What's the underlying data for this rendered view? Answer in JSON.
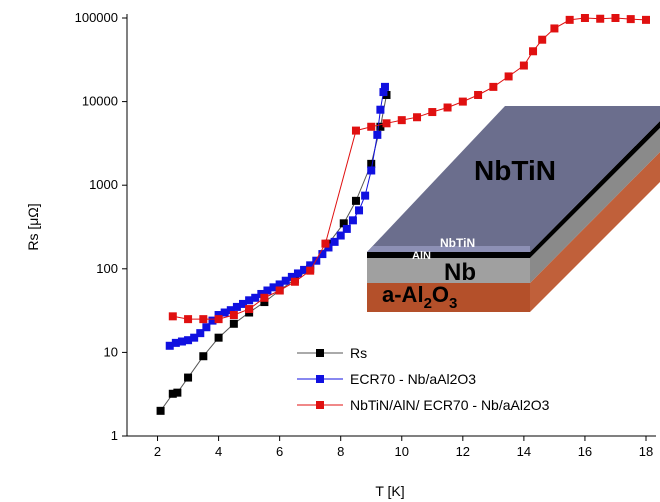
{
  "chart_data": {
    "type": "line-scatter",
    "xlabel": "T [K]",
    "ylabel": "Rs [μΩ]",
    "xlim": [
      1,
      18
    ],
    "xticks": [
      2,
      4,
      6,
      8,
      10,
      12,
      14,
      16,
      18
    ],
    "ylim": [
      1,
      100000
    ],
    "yticks": [
      1,
      10,
      100,
      1000,
      10000,
      100000
    ],
    "yscale": "log",
    "legend": "lower center",
    "series": [
      {
        "name": "Rs",
        "color": "#000000",
        "x": [
          2.1,
          2.5,
          2.65,
          3.0,
          3.5,
          4.0,
          4.5,
          5.0,
          5.5,
          6.0,
          6.5,
          7.0,
          7.6,
          8.1,
          8.5,
          9.0,
          9.3,
          9.5
        ],
        "values": [
          2,
          3.2,
          3.3,
          5,
          9,
          15,
          22,
          30,
          40,
          55,
          75,
          100,
          200,
          350,
          650,
          1800,
          5000,
          12000
        ]
      },
      {
        "name": "ECR70 - Nb/aAl2O3",
        "color": "#1010e0",
        "x": [
          2.4,
          2.6,
          2.8,
          3.0,
          3.2,
          3.4,
          3.6,
          3.8,
          4.0,
          4.2,
          4.4,
          4.6,
          4.8,
          5.0,
          5.2,
          5.4,
          5.6,
          5.8,
          6.0,
          6.2,
          6.4,
          6.6,
          6.8,
          7.0,
          7.2,
          7.4,
          7.6,
          7.8,
          8.0,
          8.2,
          8.4,
          8.6,
          8.8,
          9.0,
          9.2,
          9.3,
          9.4,
          9.45
        ],
        "values": [
          12,
          13,
          13.5,
          14,
          15,
          17,
          20,
          24,
          28,
          30,
          32,
          35,
          38,
          42,
          45,
          50,
          55,
          60,
          65,
          72,
          80,
          88,
          97,
          110,
          125,
          150,
          180,
          210,
          250,
          300,
          380,
          500,
          750,
          1500,
          4000,
          8000,
          13000,
          15000
        ]
      },
      {
        "name": "NbTiN/AlN/ ECR70 - Nb/aAl2O3",
        "color": "#e01010",
        "x": [
          2.5,
          3.0,
          3.5,
          4.0,
          4.5,
          5.0,
          5.5,
          6.0,
          6.5,
          7.0,
          7.5,
          8.5,
          9.0,
          9.5,
          10.0,
          10.5,
          11.0,
          11.5,
          12.0,
          12.5,
          13.0,
          13.5,
          14.0,
          14.3,
          14.6,
          15.0,
          15.5,
          16.0,
          16.5,
          17.0,
          17.5,
          18.0
        ],
        "values": [
          27,
          25,
          25,
          25,
          28,
          33,
          45,
          55,
          70,
          95,
          200,
          4500,
          5000,
          5500,
          6000,
          6500,
          7500,
          8500,
          10000,
          12000,
          15000,
          20000,
          27000,
          40000,
          55000,
          75000,
          95000,
          100000,
          98000,
          100000,
          97000,
          95000
        ]
      }
    ]
  },
  "inset": {
    "top_layer": "NbTiN",
    "barrier": "AlN",
    "barrier_cap": "NbTiN",
    "middle_layer": "Nb",
    "substrate": [
      "a-Al",
      "2",
      "O",
      "3"
    ]
  }
}
